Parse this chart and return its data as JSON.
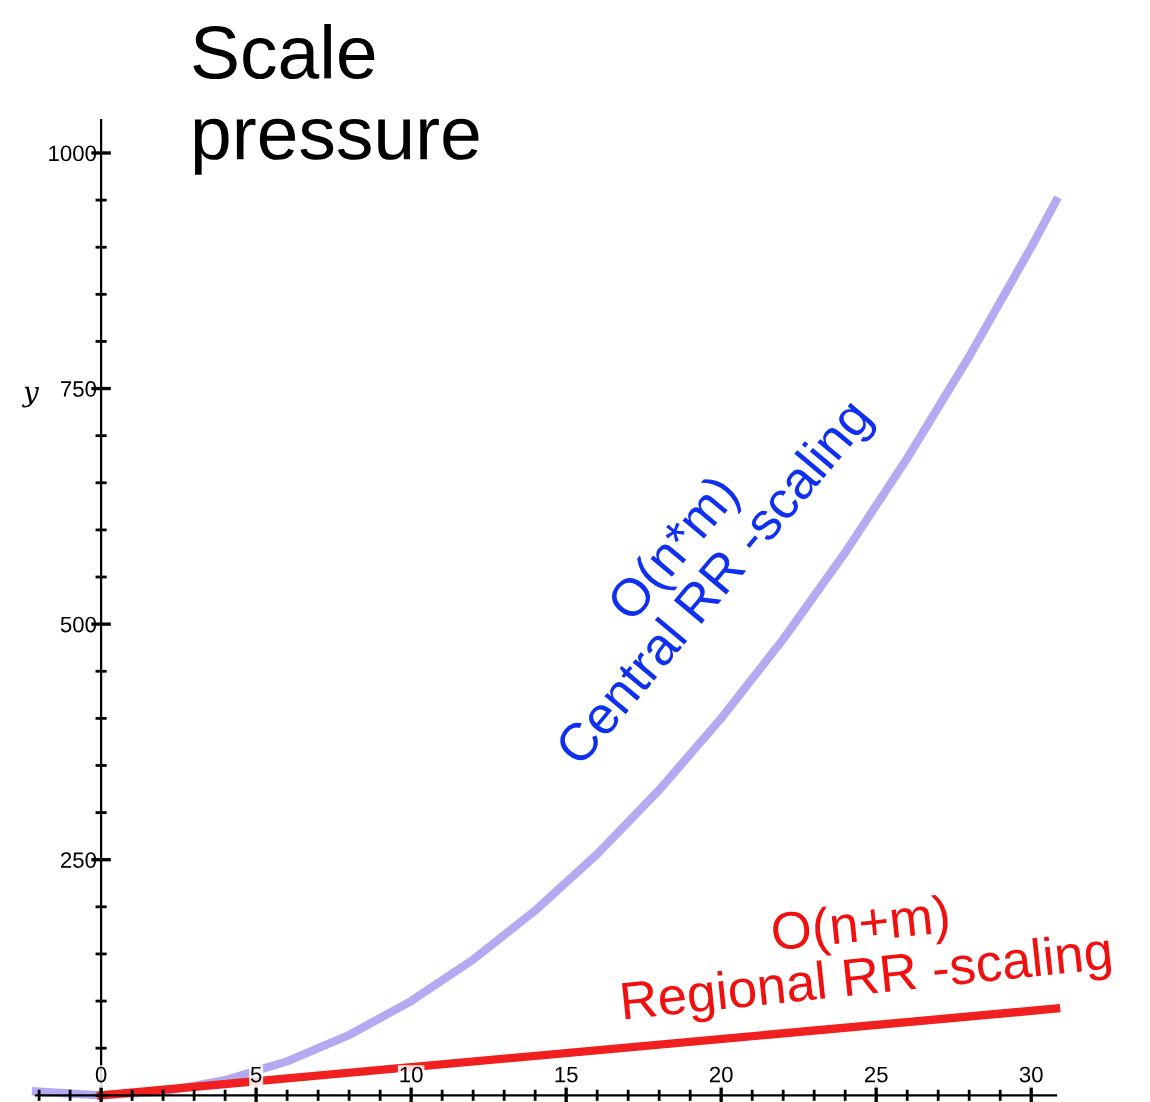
{
  "chart_data": {
    "type": "line",
    "title": "Scale\npressure",
    "ylabel": "y",
    "xlim": [
      -2.1,
      30.8
    ],
    "ylim": [
      -5,
      1035
    ],
    "xticks": [
      0,
      5,
      10,
      15,
      20,
      25,
      30
    ],
    "yticks": [
      250,
      500,
      750,
      1000
    ],
    "grid": false,
    "legend": false,
    "marker": "none",
    "line_style": "solid",
    "series": [
      {
        "name": "O(n*m)\nCentral RR -scaling",
        "color": "#b4aaf2",
        "x": [
          -2.1,
          0,
          2,
          4,
          6,
          8,
          10,
          12,
          14,
          16,
          18,
          20,
          22,
          24,
          26,
          28,
          30,
          30.8
        ],
        "values": [
          4,
          0,
          4,
          16,
          36,
          64,
          100,
          144,
          196,
          256,
          324,
          400,
          484,
          576,
          676,
          784,
          900,
          949
        ]
      },
      {
        "name": "O(n+m)\nRegional RR -scaling",
        "color": "#f02020",
        "x": [
          0,
          30.8
        ],
        "values": [
          0,
          92
        ]
      }
    ]
  }
}
